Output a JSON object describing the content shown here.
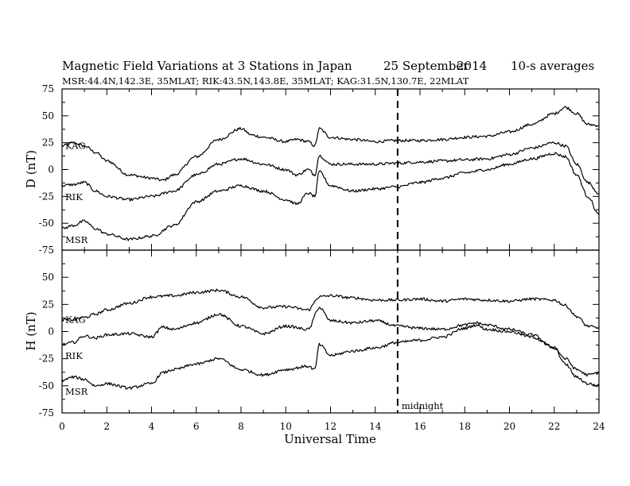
{
  "title": {
    "main": "Magnetic Field Variations at 3 Stations in Japan",
    "date": "25 September",
    "year": "2014",
    "averaging": "10-s averages",
    "stations_line": "MSR:44.4N,142.3E, 35MLAT;  RIK:43.5N,143.8E, 35MLAT;  KAG:31.5N,130.7E, 22MLAT"
  },
  "chart_data": {
    "type": "line",
    "xlabel": "Universal Time",
    "xlim": [
      0,
      24
    ],
    "xticks": [
      "0",
      "2",
      "4",
      "6",
      "8",
      "10",
      "12",
      "14",
      "16",
      "18",
      "20",
      "22",
      "24"
    ],
    "marker": {
      "x": 15,
      "label": "midnight"
    },
    "panels": [
      {
        "id": "D",
        "ylabel": "D (nT)",
        "ylim": [
          -75,
          75
        ],
        "yticks": [
          "75",
          "50",
          "25",
          "0",
          "-25",
          "-50",
          "-75"
        ],
        "series": [
          {
            "name": "KAG",
            "x": [
              0,
              0.5,
              1,
              1.5,
              2,
              3,
              4,
              4.5,
              5,
              6,
              7,
              8,
              8.5,
              9,
              10,
              10.5,
              11,
              11.3,
              11.5,
              12,
              13,
              14,
              15,
              16,
              17,
              18,
              19,
              20,
              21,
              22,
              22.5,
              23,
              23.5,
              24
            ],
            "values": [
              22,
              25,
              22,
              16,
              8,
              -5,
              -8,
              -10,
              -5,
              12,
              28,
              38,
              32,
              30,
              26,
              28,
              26,
              22,
              38,
              30,
              28,
              26,
              27,
              27,
              28,
              30,
              31,
              35,
              42,
              52,
              58,
              52,
              42,
              41
            ]
          },
          {
            "name": "RIK",
            "x": [
              0,
              0.5,
              1,
              1.5,
              2,
              3,
              4,
              5,
              6,
              7,
              8,
              9,
              10,
              10.5,
              11,
              11.3,
              11.5,
              12,
              13,
              14,
              15,
              16,
              17,
              18,
              19,
              20,
              21,
              22,
              22.5,
              23,
              23.5,
              24
            ],
            "values": [
              -15,
              -14,
              -12,
              -20,
              -25,
              -28,
              -25,
              -20,
              -5,
              5,
              10,
              5,
              0,
              -5,
              0,
              -5,
              13,
              5,
              5,
              5,
              6,
              7,
              8,
              9,
              10,
              14,
              20,
              25,
              22,
              5,
              -12,
              -22
            ]
          },
          {
            "name": "MSR",
            "x": [
              0,
              0.5,
              1,
              1.5,
              2,
              3,
              4,
              5,
              6,
              7,
              8,
              9,
              10,
              10.5,
              11,
              11.3,
              11.5,
              12,
              13,
              14,
              15,
              16,
              17,
              18,
              19,
              20,
              21,
              22,
              22.5,
              23,
              23.5,
              24
            ],
            "values": [
              -55,
              -52,
              -48,
              -55,
              -60,
              -65,
              -62,
              -52,
              -30,
              -20,
              -15,
              -20,
              -28,
              -32,
              -22,
              -25,
              -2,
              -15,
              -20,
              -18,
              -16,
              -12,
              -8,
              -3,
              0,
              5,
              10,
              15,
              12,
              -5,
              -25,
              -42
            ]
          }
        ]
      },
      {
        "id": "H",
        "ylabel": "H (nT)",
        "ylim": [
          -75,
          75
        ],
        "yticks": [
          "75",
          "50",
          "25",
          "0",
          "-25",
          "-50",
          "-75"
        ],
        "series": [
          {
            "name": "KAG",
            "x": [
              0,
              0.5,
              1,
              1.5,
              2,
              3,
              4,
              5,
              6,
              7,
              8,
              9,
              10,
              11,
              11.5,
              12,
              13,
              14,
              15,
              16,
              17,
              18,
              19,
              20,
              21,
              22,
              22.5,
              23,
              23.5,
              24
            ],
            "values": [
              11,
              11,
              13,
              16,
              20,
              26,
              32,
              33,
              36,
              38,
              32,
              22,
              23,
              20,
              32,
              33,
              31,
              29,
              29,
              30,
              28,
              30,
              29,
              28,
              30,
              29,
              24,
              14,
              5,
              3
            ]
          },
          {
            "name": "RIK",
            "x": [
              0,
              0.5,
              1,
              1.5,
              2,
              3,
              4,
              4.5,
              5,
              6,
              7,
              8,
              9,
              10,
              11,
              11.5,
              12,
              13,
              14,
              15,
              16,
              17,
              18,
              18.5,
              19,
              20,
              21,
              22,
              22.5,
              23,
              23.5,
              24
            ],
            "values": [
              -12,
              -10,
              -4,
              -6,
              -3,
              -2,
              -5,
              4,
              2,
              8,
              16,
              5,
              -2,
              5,
              2,
              22,
              10,
              8,
              10,
              5,
              3,
              2,
              6,
              8,
              6,
              2,
              -3,
              -15,
              -25,
              -35,
              -40,
              -38
            ]
          },
          {
            "name": "MSR",
            "x": [
              0,
              0.5,
              1,
              1.5,
              2,
              3,
              4,
              4.5,
              5,
              6,
              7,
              8,
              9,
              10,
              11,
              11.3,
              11.5,
              12,
              13,
              14,
              15,
              16,
              17,
              18,
              18.5,
              19,
              20,
              21,
              22,
              22.5,
              23,
              23.5,
              24
            ],
            "values": [
              -45,
              -42,
              -44,
              -50,
              -48,
              -52,
              -48,
              -38,
              -35,
              -30,
              -25,
              -35,
              -40,
              -35,
              -32,
              -35,
              -12,
              -22,
              -18,
              -15,
              -10,
              -8,
              -5,
              3,
              6,
              2,
              0,
              -5,
              -15,
              -30,
              -42,
              -48,
              -50
            ]
          }
        ]
      }
    ]
  }
}
